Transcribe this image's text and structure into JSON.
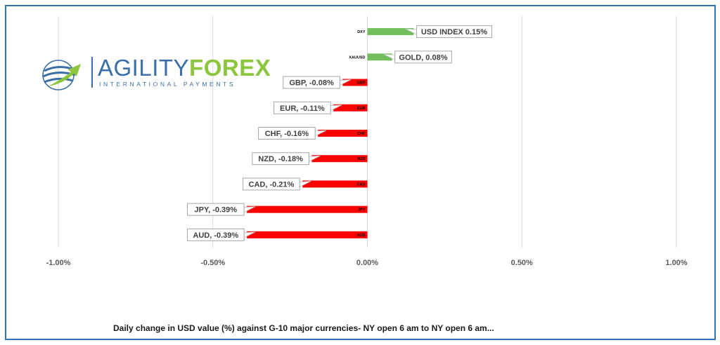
{
  "logo": {
    "name_part1": "AGILITY",
    "name_part2": "FOREX",
    "tagline": "INTERNATIONAL PAYMENTS",
    "colors": {
      "blue": "#3a6fa8",
      "green": "#8cc63f"
    }
  },
  "caption": "Daily change in  USD value (%)  against  G-10 major currencies- NY open 6 am to NY open 6 am...",
  "chart_data": {
    "type": "bar",
    "orientation": "horizontal",
    "categories": [
      "DXY",
      "XAUUSD",
      "GBP",
      "EUR",
      "CHF",
      "NZD",
      "CAD",
      "JPY",
      "AUD"
    ],
    "values": [
      0.15,
      0.08,
      -0.08,
      -0.11,
      -0.16,
      -0.18,
      -0.21,
      -0.39,
      -0.39
    ],
    "data_labels": [
      "USD INDEX 0.15%",
      "GOLD, 0.08%",
      "GBP, -0.08%",
      "EUR, -0.11%",
      "CHF, -0.16%",
      "NZD, -0.18%",
      "CAD, -0.21%",
      "JPY, -0.39%",
      "AUD, -0.39%"
    ],
    "xlim": [
      -1.0,
      1.0
    ],
    "x_ticks": [
      -1.0,
      -0.5,
      0.0,
      0.5,
      1.0
    ],
    "x_tick_labels": [
      "-1.00%",
      "-0.50%",
      "0.00%",
      "0.50%",
      "1.00%"
    ],
    "grid": true,
    "colors": {
      "positive": "#70bf5c",
      "negative": "#ff0000"
    }
  }
}
